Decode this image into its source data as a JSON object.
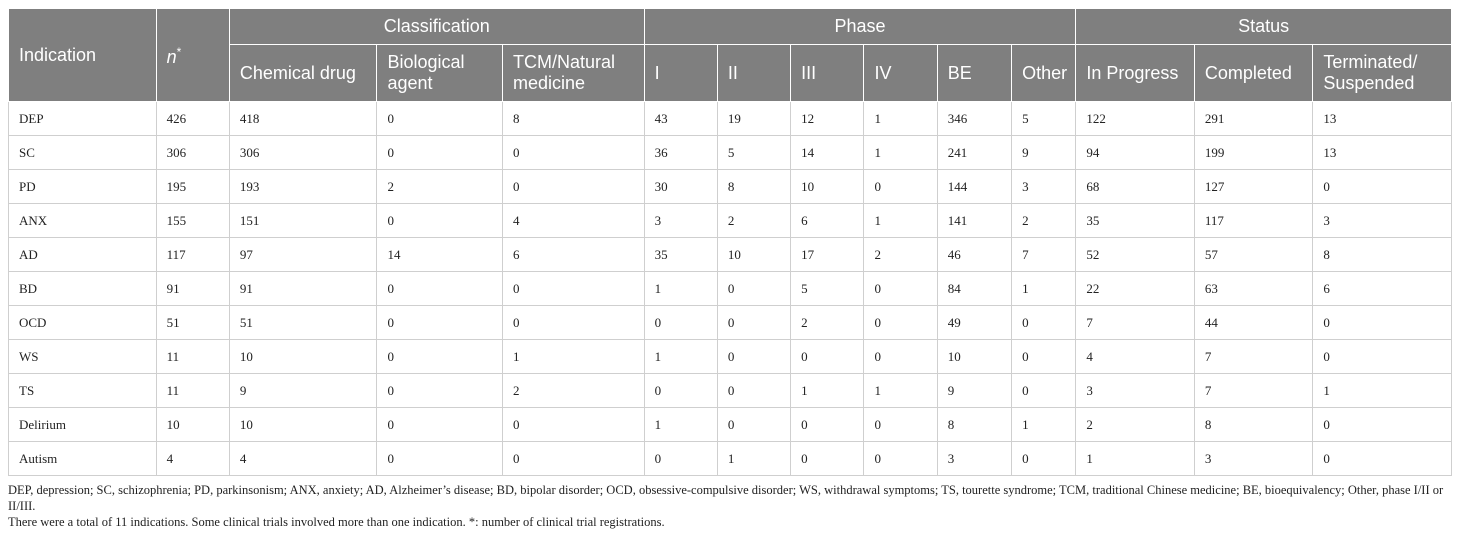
{
  "table": {
    "group_headers": {
      "indication": "Indication",
      "n_label": "n",
      "n_mark": "*",
      "classification": "Classification",
      "phase": "Phase",
      "status": "Status"
    },
    "sub_headers": {
      "chemical_drug": "Chemical drug",
      "biological_agent": "Biological agent",
      "tcm_natural": "TCM/Natural medicine",
      "phase_i": "I",
      "phase_ii": "II",
      "phase_iii": "III",
      "phase_iv": "IV",
      "be": "BE",
      "other": "Other",
      "in_progress": "In Progress",
      "completed": "Completed",
      "terminated": "Terminated/ Suspended"
    },
    "rows": [
      [
        "DEP",
        "426",
        "418",
        "0",
        "8",
        "43",
        "19",
        "12",
        "1",
        "346",
        "5",
        "122",
        "291",
        "13"
      ],
      [
        "SC",
        "306",
        "306",
        "0",
        "0",
        "36",
        "5",
        "14",
        "1",
        "241",
        "9",
        "94",
        "199",
        "13"
      ],
      [
        "PD",
        "195",
        "193",
        "2",
        "0",
        "30",
        "8",
        "10",
        "0",
        "144",
        "3",
        "68",
        "127",
        "0"
      ],
      [
        "ANX",
        "155",
        "151",
        "0",
        "4",
        "3",
        "2",
        "6",
        "1",
        "141",
        "2",
        "35",
        "117",
        "3"
      ],
      [
        "AD",
        "117",
        "97",
        "14",
        "6",
        "35",
        "10",
        "17",
        "2",
        "46",
        "7",
        "52",
        "57",
        "8"
      ],
      [
        "BD",
        "91",
        "91",
        "0",
        "0",
        "1",
        "0",
        "5",
        "0",
        "84",
        "1",
        "22",
        "63",
        "6"
      ],
      [
        "OCD",
        "51",
        "51",
        "0",
        "0",
        "0",
        "0",
        "2",
        "0",
        "49",
        "0",
        "7",
        "44",
        "0"
      ],
      [
        "WS",
        "11",
        "10",
        "0",
        "1",
        "1",
        "0",
        "0",
        "0",
        "10",
        "0",
        "4",
        "7",
        "0"
      ],
      [
        "TS",
        "11",
        "9",
        "0",
        "2",
        "0",
        "0",
        "1",
        "1",
        "9",
        "0",
        "3",
        "7",
        "1"
      ],
      [
        "Delirium",
        "10",
        "10",
        "0",
        "0",
        "1",
        "0",
        "0",
        "0",
        "8",
        "1",
        "2",
        "8",
        "0"
      ],
      [
        "Autism",
        "4",
        "4",
        "0",
        "0",
        "0",
        "1",
        "0",
        "0",
        "3",
        "0",
        "1",
        "3",
        "0"
      ]
    ]
  },
  "footnotes": {
    "abbreviations": "DEP, depression; SC, schizophrenia; PD, parkinsonism; ANX, anxiety; AD, Alzheimer’s disease; BD, bipolar disorder; OCD, obsessive-compulsive disorder; WS, withdrawal symptoms; TS, tourette syndrome; TCM, traditional Chinese medicine; BE, bioequivalency; Other, phase I/II or II/III.",
    "note": "There were a total of 11 indications. Some clinical trials involved more than one indication. *: number of clinical trial registrations."
  }
}
